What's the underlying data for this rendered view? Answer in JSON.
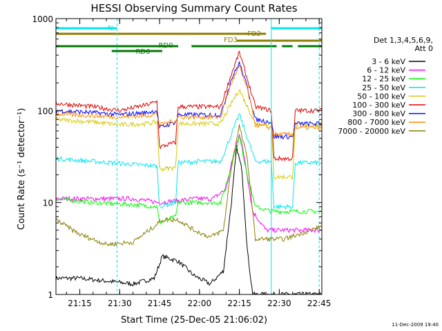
{
  "chart_data": {
    "type": "line",
    "title": "HESSI Observing Summary Count Rates",
    "xlabel": "Start Time (25-Dec-05 21:06:02)",
    "ylabel": "Count Rate (s⁻¹ detector⁻¹)",
    "yscale": "log",
    "ylim": [
      1,
      1000
    ],
    "xlim": [
      "21:06:02",
      "22:46:00"
    ],
    "x_ticks": [
      "21:15",
      "21:30",
      "21:45",
      "22:00",
      "22:15",
      "22:30",
      "22:45"
    ],
    "y_ticks": [
      "1",
      "10",
      "100",
      "1000"
    ],
    "legend": {
      "position": "right",
      "header": [
        "Det 1,3,4,5,6,9,",
        "Att 0"
      ]
    },
    "footer": "11-Dec-2009 19:40",
    "flags": [
      {
        "label": "N",
        "color": "#00e5ee",
        "segments": [
          [
            "21:06:02",
            "21:29:00"
          ],
          [
            "22:27:00",
            "22:46:00"
          ]
        ]
      },
      {
        "label": "FD2",
        "color": "#8b7d00",
        "segments": [
          [
            "21:06:02",
            "22:25:00"
          ]
        ]
      },
      {
        "label": "FD3",
        "color": "#8b7d00",
        "segments": [
          [
            "22:14:00",
            "22:46:00"
          ]
        ]
      },
      {
        "label": "RD0",
        "color": "#007a00",
        "segments": [
          [
            "21:06:02",
            "21:52:00"
          ],
          [
            "21:57:00",
            "22:29:00"
          ],
          [
            "22:31:00",
            "22:35:00"
          ],
          [
            "22:37:00",
            "22:46:00"
          ]
        ]
      },
      {
        "label": "RD6",
        "color": "#007a00",
        "segments": [
          [
            "21:27:00",
            "21:46:00"
          ]
        ]
      }
    ],
    "series": [
      {
        "name": "3 - 6 keV",
        "color": "#000000",
        "x": [
          "21:06",
          "21:15",
          "21:25",
          "21:35",
          "21:43",
          "21:46",
          "21:52",
          "21:58",
          "22:04",
          "22:09",
          "22:12",
          "22:14",
          "22:16",
          "22:18",
          "22:20",
          "22:25",
          "22:35",
          "22:46"
        ],
        "y": [
          1.5,
          1.5,
          1.4,
          1.3,
          1.5,
          2.6,
          2.3,
          1.6,
          1.3,
          1.8,
          10,
          40,
          22,
          3,
          1,
          1,
          1,
          1
        ]
      },
      {
        "name": "6 - 12 keV",
        "color": "#ff00ff",
        "x": [
          "21:06",
          "21:20",
          "21:35",
          "21:45",
          "21:52",
          "21:58",
          "22:05",
          "22:10",
          "22:13",
          "22:15",
          "22:17",
          "22:20",
          "22:25",
          "22:30",
          "22:46"
        ],
        "y": [
          11,
          11,
          11,
          10,
          10.5,
          11,
          11,
          14,
          35,
          57,
          30,
          8,
          5,
          5,
          5
        ]
      },
      {
        "name": "12 - 25 keV",
        "color": "#00ff00",
        "x": [
          "21:06",
          "21:20",
          "21:35",
          "21:44",
          "21:45",
          "21:51",
          "21:52",
          "22:00",
          "22:08",
          "22:12",
          "22:15",
          "22:18",
          "22:21",
          "22:27",
          "22:32",
          "22:46"
        ],
        "y": [
          11,
          10,
          9.5,
          9,
          6,
          7,
          10,
          10,
          10,
          25,
          52,
          20,
          9,
          8,
          8,
          8
        ]
      },
      {
        "name": "25 - 50 keV",
        "color": "#00e5ee",
        "x": [
          "21:06",
          "21:20",
          "21:35",
          "21:44",
          "21:45",
          "21:51",
          "21:52",
          "22:00",
          "22:08",
          "22:12",
          "22:15",
          "22:18",
          "22:21",
          "22:27",
          "22:28",
          "22:35",
          "22:36",
          "22:46"
        ],
        "y": [
          30,
          28,
          26,
          25,
          9,
          10,
          27,
          28,
          28,
          55,
          92,
          50,
          28,
          28,
          9,
          9,
          27,
          27
        ]
      },
      {
        "name": "50 - 100 keV",
        "color": "#d4c800",
        "x": [
          "21:06",
          "21:20",
          "21:30",
          "21:40",
          "21:44",
          "21:45",
          "21:51",
          "21:52",
          "22:00",
          "22:08",
          "22:12",
          "22:15",
          "22:18",
          "22:21",
          "22:27",
          "22:28",
          "22:35",
          "22:36",
          "22:46"
        ],
        "y": [
          80,
          75,
          70,
          72,
          75,
          23,
          24,
          72,
          72,
          72,
          120,
          170,
          110,
          72,
          72,
          19,
          19,
          70,
          70
        ]
      },
      {
        "name": "100 - 300 keV",
        "color": "#e00000",
        "x": [
          "21:06",
          "21:20",
          "21:30",
          "21:40",
          "21:44",
          "21:45",
          "21:51",
          "21:52",
          "22:00",
          "22:08",
          "22:12",
          "22:15",
          "22:18",
          "22:21",
          "22:27",
          "22:28",
          "22:35",
          "22:36",
          "22:46"
        ],
        "y": [
          120,
          110,
          100,
          115,
          125,
          40,
          45,
          110,
          110,
          110,
          250,
          430,
          220,
          110,
          100,
          30,
          30,
          100,
          100
        ]
      },
      {
        "name": "300 - 800 keV",
        "color": "#0000ff",
        "x": [
          "21:06",
          "21:20",
          "21:30",
          "21:40",
          "21:44",
          "21:45",
          "21:51",
          "21:52",
          "22:00",
          "22:08",
          "22:12",
          "22:15",
          "22:18",
          "22:21",
          "22:27",
          "22:28",
          "22:35",
          "22:36",
          "22:46"
        ],
        "y": [
          100,
          95,
          90,
          95,
          100,
          65,
          75,
          90,
          90,
          90,
          220,
          330,
          180,
          80,
          75,
          52,
          52,
          72,
          72
        ]
      },
      {
        "name": "800 - 7000 keV",
        "color": "#ff8c00",
        "x": [
          "21:06",
          "21:20",
          "21:30",
          "21:40",
          "21:44",
          "21:45",
          "21:51",
          "21:52",
          "22:00",
          "22:08",
          "22:12",
          "22:15",
          "22:18",
          "22:21",
          "22:27",
          "22:28",
          "22:35",
          "22:36",
          "22:46"
        ],
        "y": [
          92,
          88,
          85,
          88,
          92,
          70,
          78,
          85,
          85,
          85,
          200,
          300,
          170,
          70,
          65,
          55,
          55,
          65,
          65
        ]
      },
      {
        "name": "7000 - 20000 keV",
        "color": "#8b7d00",
        "x": [
          "21:06",
          "21:15",
          "21:25",
          "21:35",
          "21:43",
          "21:46",
          "21:52",
          "21:58",
          "22:04",
          "22:09",
          "22:12",
          "22:15",
          "22:18",
          "22:21",
          "22:27",
          "22:32",
          "22:46"
        ],
        "y": [
          6.5,
          4.5,
          3.5,
          3.7,
          5.5,
          6.5,
          6.5,
          5,
          4.2,
          5,
          25,
          68,
          30,
          4,
          4,
          4,
          5.5
        ]
      }
    ]
  }
}
